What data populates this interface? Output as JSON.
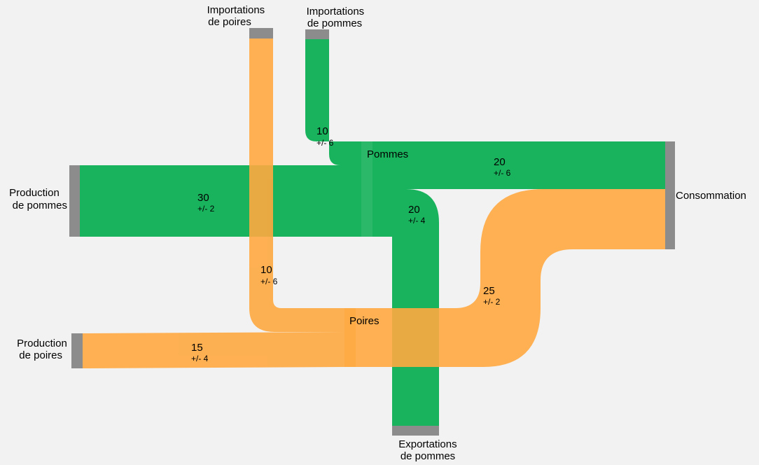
{
  "title": "",
  "colors": {
    "pommes": "#1ab35d",
    "poires": "#ffa940",
    "node": "#8c8c8c",
    "background": "#f2f2f2"
  },
  "nodes": {
    "imp_poires": {
      "line1": "Importations",
      "line2": "de poires"
    },
    "imp_pommes": {
      "line1": "Importations",
      "line2": "de pommes"
    },
    "prod_pommes": {
      "line1": "Production",
      "line2": "de pommes"
    },
    "prod_poires": {
      "line1": "Production",
      "line2": "de poires"
    },
    "pommes": {
      "label": "Pommes"
    },
    "poires": {
      "label": "Poires"
    },
    "consommation": {
      "label": "Consommation"
    },
    "exp_pommes": {
      "line1": "Exportations",
      "line2": "de pommes"
    }
  },
  "flows": {
    "imp_pommes_to_pommes": {
      "value": "10",
      "uncertainty": "+/- 6"
    },
    "prod_pommes_to_pommes": {
      "value": "30",
      "uncertainty": "+/- 2"
    },
    "pommes_to_consommation": {
      "value": "20",
      "uncertainty": "+/- 6"
    },
    "pommes_to_exportations": {
      "value": "20",
      "uncertainty": "+/- 4"
    },
    "imp_poires_to_poires": {
      "value": "10",
      "uncertainty": "+/- 6"
    },
    "prod_poires_to_poires": {
      "value": "15",
      "uncertainty": "+/- 4"
    },
    "poires_to_consommation": {
      "value": "25",
      "uncertainty": "+/- 2"
    }
  },
  "chart_data": {
    "type": "sankey",
    "links": [
      {
        "source": "Importations de pommes",
        "target": "Pommes",
        "value": 10,
        "uncertainty": 6
      },
      {
        "source": "Production de pommes",
        "target": "Pommes",
        "value": 30,
        "uncertainty": 2
      },
      {
        "source": "Pommes",
        "target": "Consommation",
        "value": 20,
        "uncertainty": 6
      },
      {
        "source": "Pommes",
        "target": "Exportations de pommes",
        "value": 20,
        "uncertainty": 4
      },
      {
        "source": "Importations de poires",
        "target": "Poires",
        "value": 10,
        "uncertainty": 6
      },
      {
        "source": "Production de poires",
        "target": "Poires",
        "value": 15,
        "uncertainty": 4
      },
      {
        "source": "Poires",
        "target": "Consommation",
        "value": 25,
        "uncertainty": 2
      }
    ]
  }
}
